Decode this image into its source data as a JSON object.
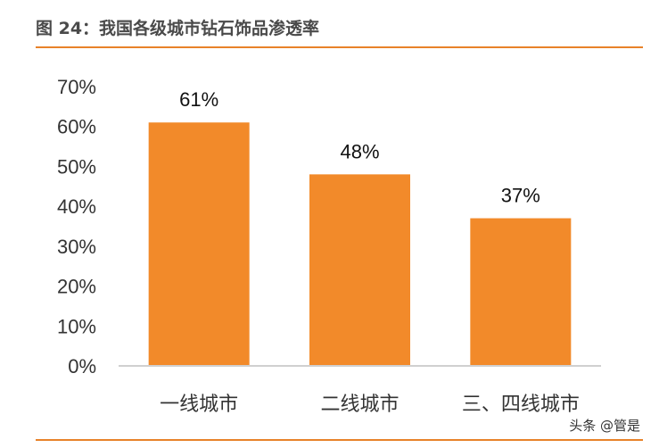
{
  "figure": {
    "title": "图 24：我国各级城市钻石饰品渗透率"
  },
  "watermark": "头条 @管是",
  "colors": {
    "bar": "#f28a2a",
    "rule": "#e8822a",
    "axis": "#d0d0d0",
    "text": "#333333"
  },
  "chart_data": {
    "type": "bar",
    "categories": [
      "一线城市",
      "二线城市",
      "三、四线城市"
    ],
    "values": [
      61,
      48,
      37
    ],
    "data_labels": [
      "61%",
      "48%",
      "37%"
    ],
    "yticks": [
      "0%",
      "10%",
      "20%",
      "30%",
      "40%",
      "50%",
      "60%",
      "70%"
    ],
    "ylim": [
      0,
      70
    ],
    "title": "",
    "xlabel": "",
    "ylabel": "",
    "grid": false,
    "legend": "none"
  }
}
